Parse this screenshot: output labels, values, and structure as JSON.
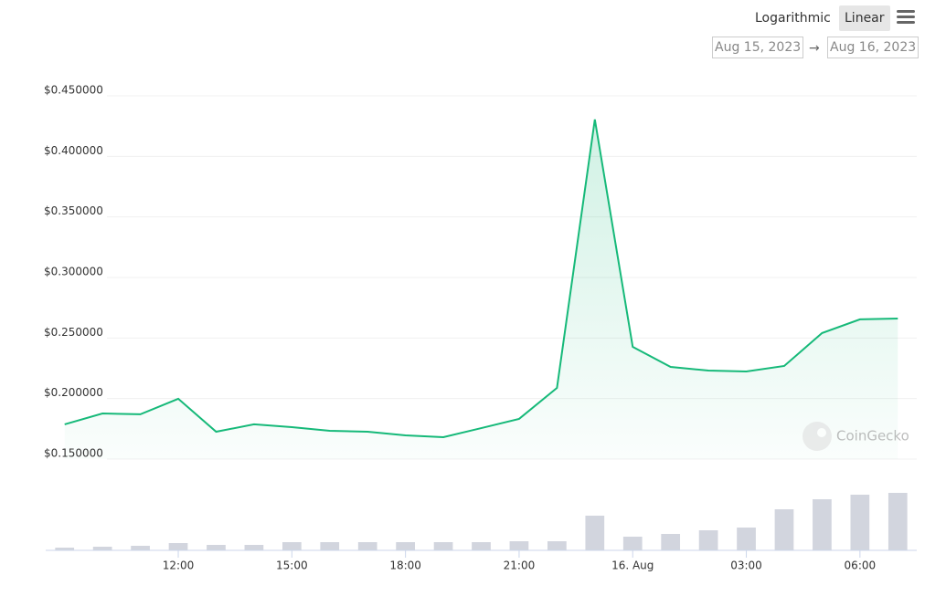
{
  "controls": {
    "scale_options": [
      "Logarithmic",
      "Linear"
    ],
    "active_scale": "Linear",
    "date_from": "Aug 15, 2023",
    "date_separator": "→",
    "date_to": "Aug 16, 2023"
  },
  "watermark": "CoinGecko",
  "chart_data": {
    "type": "line",
    "x": [
      9,
      10,
      11,
      12,
      13,
      14,
      15,
      16,
      17,
      18,
      19,
      20,
      21,
      22,
      23,
      24,
      25,
      26,
      27,
      28,
      29,
      30,
      31
    ],
    "values": [
      0.1787,
      0.1877,
      0.187,
      0.1998,
      0.1726,
      0.1787,
      0.1764,
      0.1734,
      0.1726,
      0.1696,
      0.1681,
      0.1756,
      0.1832,
      0.2088,
      0.4305,
      0.2427,
      0.2261,
      0.2231,
      0.2224,
      0.2269,
      0.2541,
      0.2654,
      0.2661
    ],
    "color": "#16b979",
    "volume": {
      "values": [
        3,
        4,
        5,
        8,
        6,
        6,
        9,
        9,
        9,
        9,
        9,
        9,
        10,
        10,
        38,
        15,
        18,
        22,
        25,
        45,
        56,
        61,
        63
      ],
      "color": "#d2d5de"
    },
    "xlim": [
      8.5,
      31.5
    ],
    "xticks": [
      {
        "value": 12,
        "label": "12:00"
      },
      {
        "value": 15,
        "label": "15:00"
      },
      {
        "value": 18,
        "label": "18:00"
      },
      {
        "value": 21,
        "label": "21:00"
      },
      {
        "value": 24,
        "label": "16. Aug"
      },
      {
        "value": 27,
        "label": "03:00"
      },
      {
        "value": 30,
        "label": "06:00"
      }
    ],
    "ylim": [
      0.15,
      0.45
    ],
    "yticks": [
      {
        "value": 0.15,
        "label": "$0.150000"
      },
      {
        "value": 0.2,
        "label": "$0.200000"
      },
      {
        "value": 0.25,
        "label": "$0.250000"
      },
      {
        "value": 0.3,
        "label": "$0.300000"
      },
      {
        "value": 0.35,
        "label": "$0.350000"
      },
      {
        "value": 0.4,
        "label": "$0.400000"
      },
      {
        "value": 0.45,
        "label": "$0.450000"
      }
    ],
    "y2lim": [
      0,
      83
    ],
    "grid": true
  }
}
